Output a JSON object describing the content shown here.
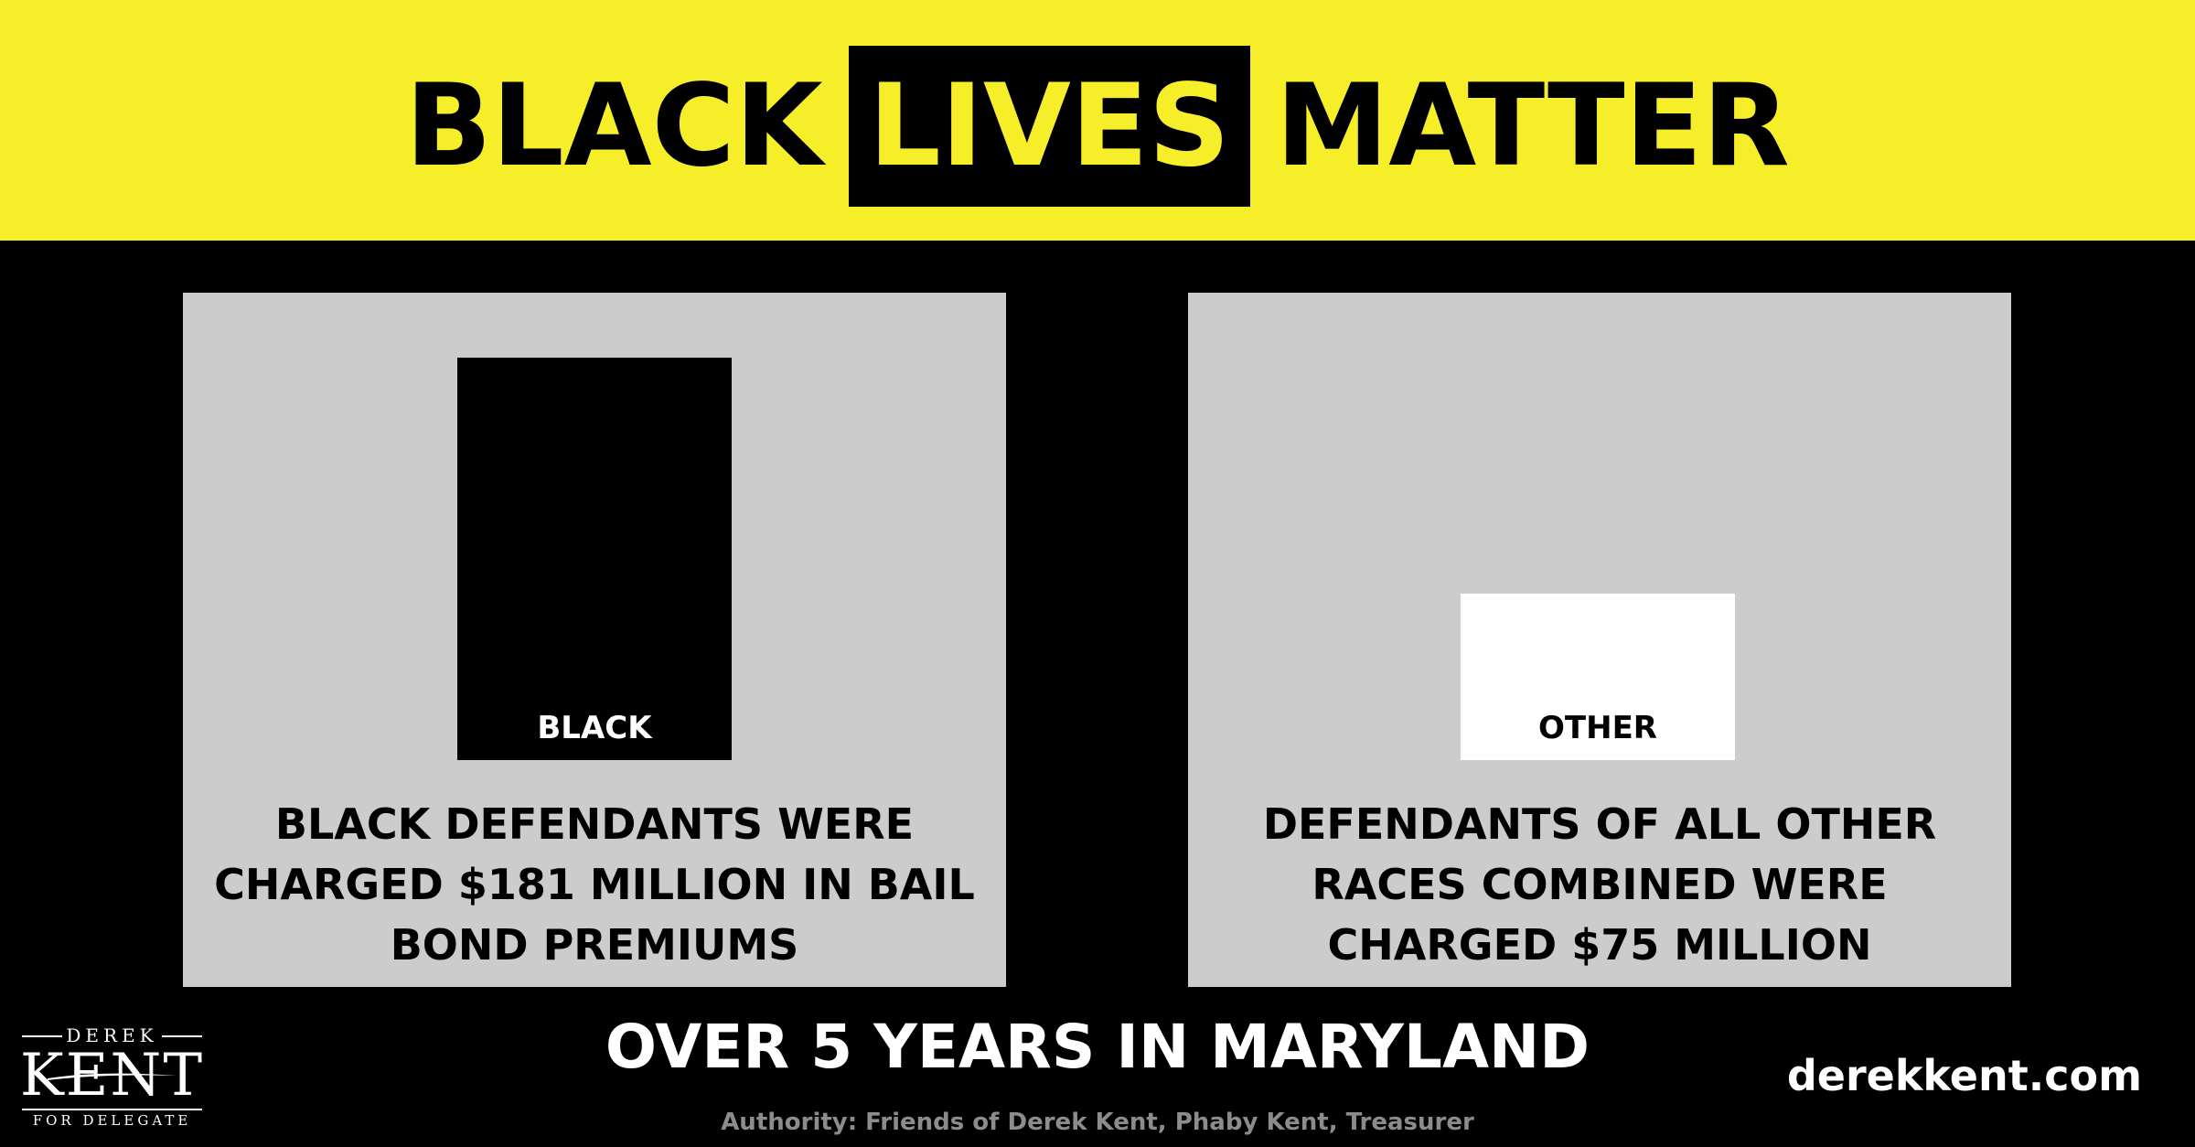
{
  "header": {
    "word1": "BLACK",
    "word2": "LIVES",
    "word3": "MATTER"
  },
  "chart_data": [
    {
      "type": "bar",
      "categories": [
        "BLACK"
      ],
      "values": [
        181
      ],
      "caption": "BLACK DEFENDANTS WERE CHARGED $181 MILLION IN BAIL BOND PREMIUMS",
      "bar_color": "#000000"
    },
    {
      "type": "bar",
      "categories": [
        "OTHER"
      ],
      "values": [
        75
      ],
      "caption": "DEFENDANTS OF ALL OTHER RACES COMBINED WERE CHARGED $75 MILLION",
      "bar_color": "#ffffff"
    }
  ],
  "footer": {
    "title": "OVER 5 YEARS IN MARYLAND",
    "site": "derekkent.com",
    "authority": "Authority: Friends of Derek Kent, Phaby Kent, Treasurer"
  },
  "logo": {
    "first": "DEREK",
    "last": "KENT",
    "sub": "FOR DELEGATE"
  },
  "colors": {
    "accent": "#f7ee2a",
    "panel": "#cccccc",
    "background": "#000000"
  }
}
